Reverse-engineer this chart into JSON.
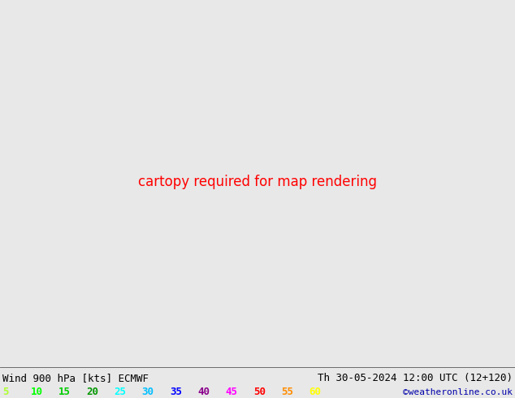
{
  "title_left": "Wind 900 hPa [kts] ECMWF",
  "title_right": "Th 30-05-2024 12:00 UTC (12+120)",
  "credit": "©weatheronline.co.uk",
  "legend_values": [
    5,
    10,
    15,
    20,
    25,
    30,
    35,
    40,
    45,
    50,
    55,
    60
  ],
  "legend_colors": [
    "#adff2f",
    "#00ff00",
    "#00cd00",
    "#009600",
    "#00ffff",
    "#00bfff",
    "#0000ff",
    "#8b008b",
    "#ff00ff",
    "#ff0000",
    "#ff8c00",
    "#ffff00"
  ],
  "speed_color_map": [
    [
      5,
      "#adff2f"
    ],
    [
      10,
      "#00ff00"
    ],
    [
      15,
      "#00cd00"
    ],
    [
      20,
      "#009600"
    ],
    [
      25,
      "#00ffff"
    ],
    [
      30,
      "#00bfff"
    ],
    [
      35,
      "#0000ff"
    ],
    [
      40,
      "#8b008b"
    ],
    [
      45,
      "#ff00ff"
    ],
    [
      50,
      "#ff0000"
    ],
    [
      55,
      "#ff8c00"
    ],
    [
      60,
      "#ffff00"
    ]
  ],
  "bg_color": "#e8e8e8",
  "land_color": "#90ee90",
  "sea_color": "#f5f5f5",
  "mountains_color": "#c8c8c8",
  "border_color": "#1a1a1a",
  "font_color": "#000000",
  "font_size_title": 9,
  "font_size_legend": 9,
  "font_size_credit": 8,
  "lon_min": -2.0,
  "lon_max": 35.0,
  "lat_min": 54.0,
  "lat_max": 73.0,
  "figsize": [
    6.34,
    4.9
  ],
  "dpi": 100
}
